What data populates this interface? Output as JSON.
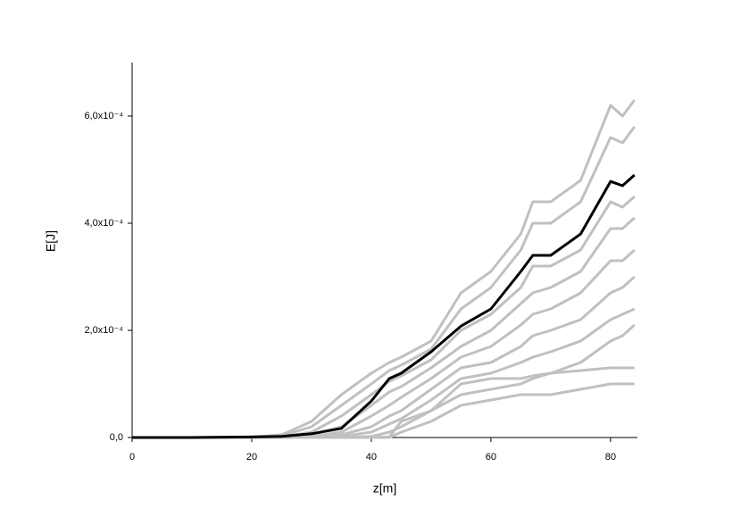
{
  "chart_data": {
    "type": "line",
    "x_label": "z[m]",
    "y_label": "E[J]",
    "x": [
      0,
      10,
      20,
      25,
      30,
      35,
      40,
      43,
      45,
      50,
      55,
      60,
      65,
      67,
      70,
      75,
      80,
      82,
      84
    ],
    "xlim": [
      0,
      84.5
    ],
    "xticks": [
      0,
      20,
      40,
      60,
      80
    ],
    "ylim": [
      0,
      0.0007
    ],
    "yticks": [
      {
        "value": 0,
        "label": "0,0"
      },
      {
        "value": 0.0002,
        "label": "2,0x10⁻⁴"
      },
      {
        "value": 0.0004,
        "label": "4,0x10⁻⁴"
      },
      {
        "value": 0.0006,
        "label": "6,0x10⁻⁴"
      }
    ],
    "grid": false,
    "series": [
      {
        "color": "#c0c0c0",
        "values": [
          0,
          0,
          1e-06,
          5e-06,
          3e-05,
          8e-05,
          0.00012,
          0.00014,
          0.00015,
          0.00018,
          0.00027,
          0.00031,
          0.00038,
          0.00044,
          0.00044,
          0.00048,
          0.00062,
          0.0006,
          0.00063
        ]
      },
      {
        "color": "#c0c0c0",
        "values": [
          0,
          0,
          5e-07,
          3e-06,
          2e-05,
          6e-05,
          0.0001,
          0.000125,
          0.000135,
          0.000165,
          0.00024,
          0.00028,
          0.00035,
          0.0004,
          0.0004,
          0.00044,
          0.00056,
          0.00055,
          0.00058
        ]
      },
      {
        "color": "#c0c0c0",
        "values": [
          0,
          0,
          0,
          1e-06,
          1e-05,
          4e-05,
          8e-05,
          0.000105,
          0.000115,
          0.000145,
          0.0002,
          0.00023,
          0.00028,
          0.00032,
          0.00032,
          0.00035,
          0.00044,
          0.00043,
          0.00045
        ]
      },
      {
        "color": "#c0c0c0",
        "values": [
          0,
          0,
          0,
          0,
          5e-06,
          2e-05,
          6e-05,
          8.5e-05,
          9.5e-05,
          0.00013,
          0.00017,
          0.0002,
          0.00025,
          0.00027,
          0.00028,
          0.00031,
          0.00039,
          0.00039,
          0.00041
        ]
      },
      {
        "color": "#c0c0c0",
        "values": [
          0,
          0,
          0,
          0,
          2e-06,
          1e-05,
          4e-05,
          6e-05,
          7.5e-05,
          0.00011,
          0.00015,
          0.00017,
          0.00021,
          0.00023,
          0.00024,
          0.00027,
          0.00033,
          0.00033,
          0.00035
        ]
      },
      {
        "color": "#c0c0c0",
        "values": [
          0,
          0,
          0,
          0,
          0,
          5e-06,
          2e-05,
          4e-05,
          5e-05,
          9e-05,
          0.00013,
          0.00014,
          0.00017,
          0.00019,
          0.0002,
          0.00022,
          0.00027,
          0.00028,
          0.0003
        ]
      },
      {
        "color": "#c0c0c0",
        "values": [
          0,
          0,
          0,
          0,
          0,
          2e-06,
          1e-05,
          2.5e-05,
          3.5e-05,
          7e-05,
          0.00011,
          0.00012,
          0.00014,
          0.00015,
          0.00016,
          0.00018,
          0.00022,
          0.00023,
          0.00024
        ]
      },
      {
        "color": "#c0c0c0",
        "values": [
          0,
          0,
          0,
          0,
          0,
          0,
          2e-06,
          1e-05,
          2e-05,
          5e-05,
          8e-05,
          9e-05,
          0.0001,
          0.00011,
          0.00012,
          0.00014,
          0.00018,
          0.00019,
          0.00021
        ]
      },
      {
        "color": "#c0c0c0",
        "values": [
          0,
          0,
          0,
          0,
          0,
          0,
          0,
          1e-06,
          3e-05,
          5e-05,
          0.0001,
          0.00011,
          0.00011,
          0.000115,
          0.00012,
          0.000125,
          0.00013,
          0.00013,
          0.00013
        ]
      },
      {
        "color": "#c0c0c0",
        "values": [
          0,
          0,
          0,
          0,
          0,
          0,
          0,
          0,
          1e-05,
          3e-05,
          6e-05,
          7e-05,
          8e-05,
          8e-05,
          8e-05,
          9e-05,
          0.0001,
          0.0001,
          0.0001
        ]
      },
      {
        "color": "#000000",
        "values": [
          0,
          0,
          1e-06,
          2e-06,
          7e-06,
          1.7e-05,
          6.8e-05,
          0.00011,
          0.00012,
          0.00016,
          0.000208,
          0.00024,
          0.00031,
          0.00034,
          0.00034,
          0.00038,
          0.000478,
          0.00047,
          0.00049
        ]
      }
    ]
  }
}
